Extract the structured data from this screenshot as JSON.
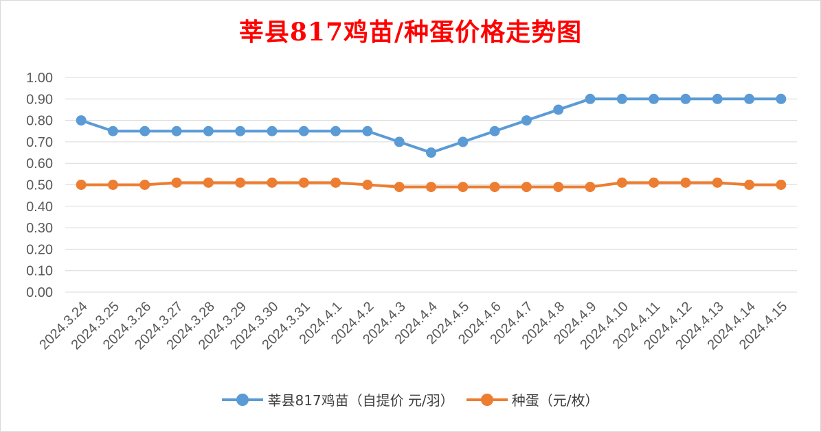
{
  "chart_data": {
    "type": "line",
    "title": "莘县817鸡苗/种蛋价格走势图",
    "categories": [
      "2024.3.24",
      "2024.3.25",
      "2024.3.26",
      "2024.3.27",
      "2024.3.28",
      "2024.3.29",
      "2024.3.30",
      "2024.3.31",
      "2024.4.1",
      "2024.4.2",
      "2024.4.3",
      "2024.4.4",
      "2024.4.5",
      "2024.4.6",
      "2024.4.7",
      "2024.4.8",
      "2024.4.9",
      "2024.4.10",
      "2024.4.11",
      "2024.4.12",
      "2024.4.13",
      "2024.4.14",
      "2024.4.15"
    ],
    "y_ticks": [
      "0.00",
      "0.10",
      "0.20",
      "0.30",
      "0.40",
      "0.50",
      "0.60",
      "0.70",
      "0.80",
      "0.90",
      "1.00"
    ],
    "ylim": [
      0,
      1.0
    ],
    "grid": true,
    "legend_position": "bottom",
    "series": [
      {
        "name": "莘县817鸡苗（自提价 元/羽）",
        "color": "#5b9bd5",
        "values": [
          0.8,
          0.75,
          0.75,
          0.75,
          0.75,
          0.75,
          0.75,
          0.75,
          0.75,
          0.75,
          0.7,
          0.65,
          0.7,
          0.75,
          0.8,
          0.85,
          0.9,
          0.9,
          0.9,
          0.9,
          0.9,
          0.9,
          0.9
        ]
      },
      {
        "name": "种蛋（元/枚）",
        "color": "#ed7d31",
        "values": [
          0.5,
          0.5,
          0.5,
          0.51,
          0.51,
          0.51,
          0.51,
          0.51,
          0.51,
          0.5,
          0.49,
          0.49,
          0.49,
          0.49,
          0.49,
          0.49,
          0.49,
          0.51,
          0.51,
          0.51,
          0.51,
          0.5,
          0.5
        ]
      }
    ]
  }
}
